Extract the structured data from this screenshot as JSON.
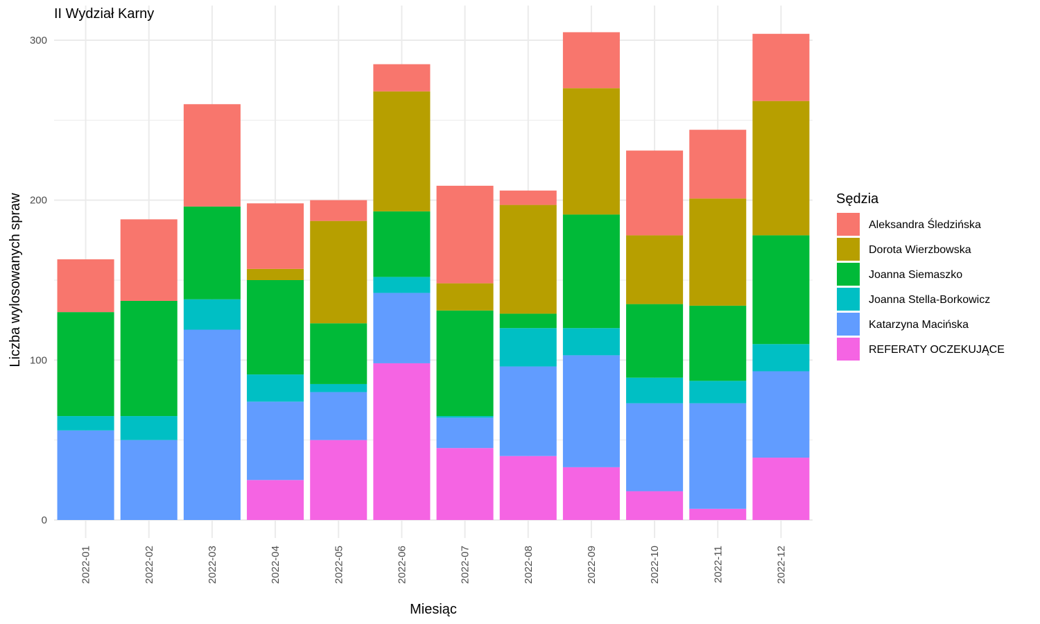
{
  "chart_data": {
    "type": "bar",
    "stacked": true,
    "title": "II Wydział Karny",
    "xlabel": "Miesiąc",
    "ylabel": "Liczba wylosowanych spraw",
    "ylim": [
      0,
      310
    ],
    "yticks": [
      0,
      100,
      200,
      300
    ],
    "grid": true,
    "legend_title": "Sędzia",
    "legend_position": "right",
    "categories": [
      "2022-01",
      "2022-02",
      "2022-03",
      "2022-04",
      "2022-05",
      "2022-06",
      "2022-07",
      "2022-08",
      "2022-09",
      "2022-10",
      "2022-11",
      "2022-12"
    ],
    "stack_order_bottom_to_top": [
      "REFERATY OCZEKUJĄCE",
      "Katarzyna Macińska",
      "Joanna Stella-Borkowicz",
      "Joanna Siemaszko",
      "Dorota Wierzbowska",
      "Aleksandra Śledzińska"
    ],
    "series": [
      {
        "name": "Aleksandra Śledzińska",
        "color": "#F8766D",
        "values": [
          33,
          51,
          64,
          41,
          13,
          17,
          61,
          9,
          35,
          53,
          43,
          42
        ]
      },
      {
        "name": "Dorota Wierzbowska",
        "color": "#B79F00",
        "values": [
          0,
          0,
          0,
          7,
          64,
          75,
          17,
          68,
          79,
          43,
          67,
          84
        ]
      },
      {
        "name": "Joanna Siemaszko",
        "color": "#00BA38",
        "values": [
          65,
          72,
          58,
          59,
          38,
          41,
          66,
          9,
          71,
          46,
          47,
          68
        ]
      },
      {
        "name": "Joanna Stella-Borkowicz",
        "color": "#00BFC4",
        "values": [
          9,
          15,
          19,
          17,
          5,
          10,
          1,
          24,
          17,
          16,
          14,
          17
        ]
      },
      {
        "name": "Katarzyna Macińska",
        "color": "#619CFF",
        "values": [
          56,
          50,
          119,
          49,
          30,
          44,
          19,
          56,
          70,
          55,
          66,
          54
        ]
      },
      {
        "name": "REFERATY OCZEKUJĄCE",
        "color": "#F564E3",
        "values": [
          0,
          0,
          0,
          25,
          50,
          98,
          45,
          40,
          33,
          18,
          7,
          39
        ]
      }
    ]
  }
}
